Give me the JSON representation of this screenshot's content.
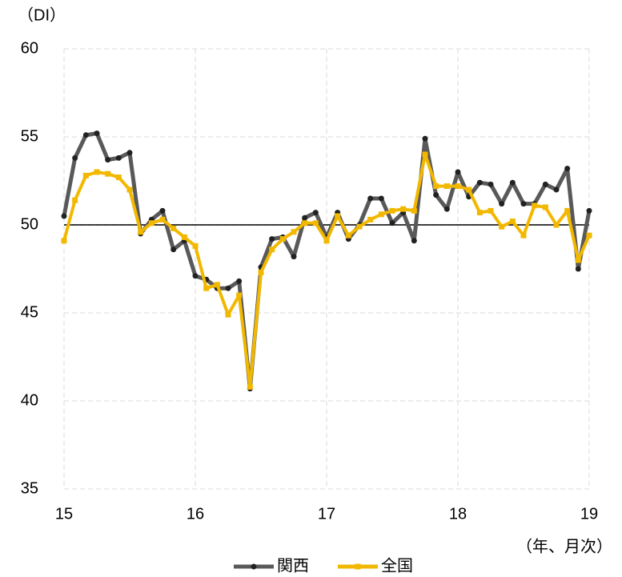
{
  "chart_data": {
    "type": "line",
    "y_unit_label": "（DI）",
    "x_unit_label": "（年、月次）",
    "categories": [
      "15",
      null,
      null,
      null,
      null,
      null,
      null,
      null,
      null,
      null,
      null,
      null,
      "16",
      null,
      null,
      null,
      null,
      null,
      null,
      null,
      null,
      null,
      null,
      null,
      "17",
      null,
      null,
      null,
      null,
      null,
      null,
      null,
      null,
      null,
      null,
      null,
      "18",
      null,
      null,
      null,
      null,
      null,
      null,
      null,
      null,
      null,
      null,
      null,
      "19"
    ],
    "series": [
      {
        "name": "関西",
        "color": "#595959",
        "values": [
          50.5,
          53.8,
          55.1,
          55.2,
          53.7,
          53.8,
          54.1,
          49.5,
          50.3,
          50.8,
          48.6,
          49.1,
          47.1,
          46.9,
          46.4,
          46.4,
          46.8,
          40.7,
          47.6,
          49.2,
          49.3,
          48.2,
          50.4,
          50.7,
          49.3,
          50.7,
          49.2,
          50.0,
          51.5,
          51.5,
          50.1,
          50.7,
          49.1,
          54.9,
          51.7,
          50.9,
          53.0,
          51.6,
          52.4,
          52.3,
          51.2,
          52.4,
          51.2,
          51.2,
          52.3,
          52.0,
          53.2,
          47.5,
          50.8
        ]
      },
      {
        "name": "全国",
        "color": "#f2b800",
        "values": [
          49.1,
          51.4,
          52.8,
          53.0,
          52.9,
          52.7,
          52.0,
          49.6,
          50.1,
          50.3,
          49.8,
          49.3,
          48.8,
          46.4,
          46.6,
          44.9,
          46.0,
          40.8,
          47.3,
          48.6,
          49.2,
          49.6,
          50.1,
          50.1,
          49.1,
          50.5,
          49.4,
          49.9,
          50.3,
          50.6,
          50.8,
          50.9,
          50.8,
          54.0,
          52.2,
          52.2,
          52.2,
          52.0,
          50.7,
          50.8,
          49.9,
          50.2,
          49.4,
          51.1,
          51.0,
          50.0,
          50.8,
          48.0,
          49.4
        ]
      }
    ],
    "ylim": [
      35,
      60
    ],
    "yticks": [
      35,
      40,
      45,
      50,
      55,
      60
    ],
    "reference_line": 50,
    "grid": true
  }
}
